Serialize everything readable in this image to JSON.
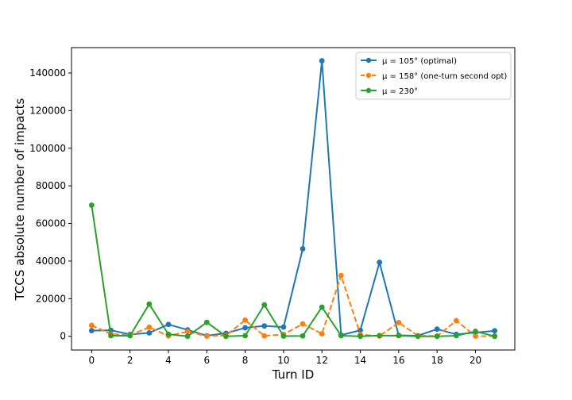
{
  "chart_data": {
    "type": "line",
    "xlabel": "Turn ID",
    "ylabel": "TCCS absolute number of impacts",
    "xlim": [
      -1.05,
      22.05
    ],
    "ylim": [
      -7300,
      153500
    ],
    "xticks": [
      0,
      2,
      4,
      6,
      8,
      10,
      12,
      14,
      16,
      18,
      20
    ],
    "yticks": [
      0,
      20000,
      40000,
      60000,
      80000,
      100000,
      120000,
      140000
    ],
    "grid": false,
    "legend_position": "top-right",
    "x": [
      0,
      1,
      2,
      3,
      4,
      5,
      6,
      7,
      8,
      9,
      10,
      11,
      12,
      13,
      14,
      15,
      16,
      17,
      18,
      19,
      20,
      21
    ],
    "series": [
      {
        "name": "μ = 105° (optimal)",
        "color": "#1f77b4",
        "linestyle": "solid",
        "values": [
          3000,
          3200,
          1000,
          1800,
          6300,
          3400,
          300,
          1600,
          4500,
          5500,
          4900,
          46500,
          146500,
          600,
          3200,
          39300,
          500,
          300,
          3800,
          1000,
          2000,
          2900
        ]
      },
      {
        "name": "μ = 158° (one-turn second opt)",
        "color": "#ff7f0e",
        "linestyle": "dashed",
        "values": [
          5800,
          1200,
          600,
          4800,
          200,
          2500,
          100,
          400,
          8600,
          200,
          1000,
          6600,
          1300,
          32300,
          900,
          100,
          7300,
          300,
          100,
          8300,
          100,
          100
        ]
      },
      {
        "name": "μ = 230°",
        "color": "#2ca02c",
        "linestyle": "solid",
        "values": [
          69700,
          300,
          300,
          17100,
          1100,
          0,
          7400,
          0,
          300,
          16700,
          100,
          200,
          15500,
          300,
          0,
          400,
          300,
          0,
          0,
          300,
          2600,
          0
        ]
      }
    ]
  }
}
